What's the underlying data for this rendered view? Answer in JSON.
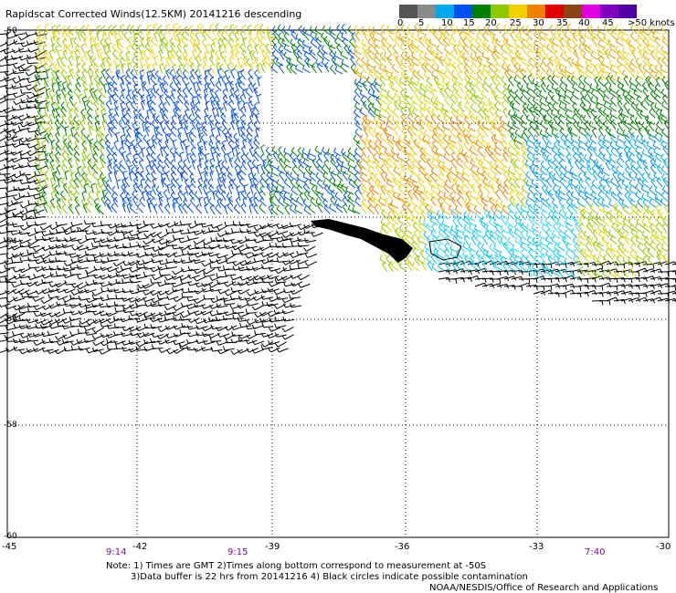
{
  "header": {
    "title": "Rapidscat Corrected Winds(12.5KM) 20141216 descending"
  },
  "colorbar": {
    "labels": [
      "0",
      "5",
      "10",
      "15",
      "20",
      "25",
      "30",
      "35",
      "40",
      "45",
      ">50 knots"
    ],
    "colors": [
      "#555555",
      "#8a8a8a",
      "#00a8f0",
      "#0050f0",
      "#008000",
      "#90c800",
      "#f0d000",
      "#f08000",
      "#e00000",
      "#8b4513",
      "#e000e0",
      "#8000c0",
      "#5000a0"
    ]
  },
  "axes": {
    "x_ticks": [
      "-45",
      "-42",
      "-39",
      "-36",
      "-33",
      "-30"
    ],
    "y_ticks": [
      "-50",
      "-52",
      "-54",
      "-56",
      "-58",
      "-60"
    ],
    "time_labels": [
      "9:14",
      "9:15",
      "7:40"
    ]
  },
  "notes": {
    "line1": "Note: 1) Times are GMT 2)Times along bottom correspond to measurement at -50S",
    "line2": "3)Data buffer is 22 hrs from 20141216 4) Black circles indicate possible contamination",
    "credit": "NOAA/NESDIS/Office of Research and Applications"
  }
}
